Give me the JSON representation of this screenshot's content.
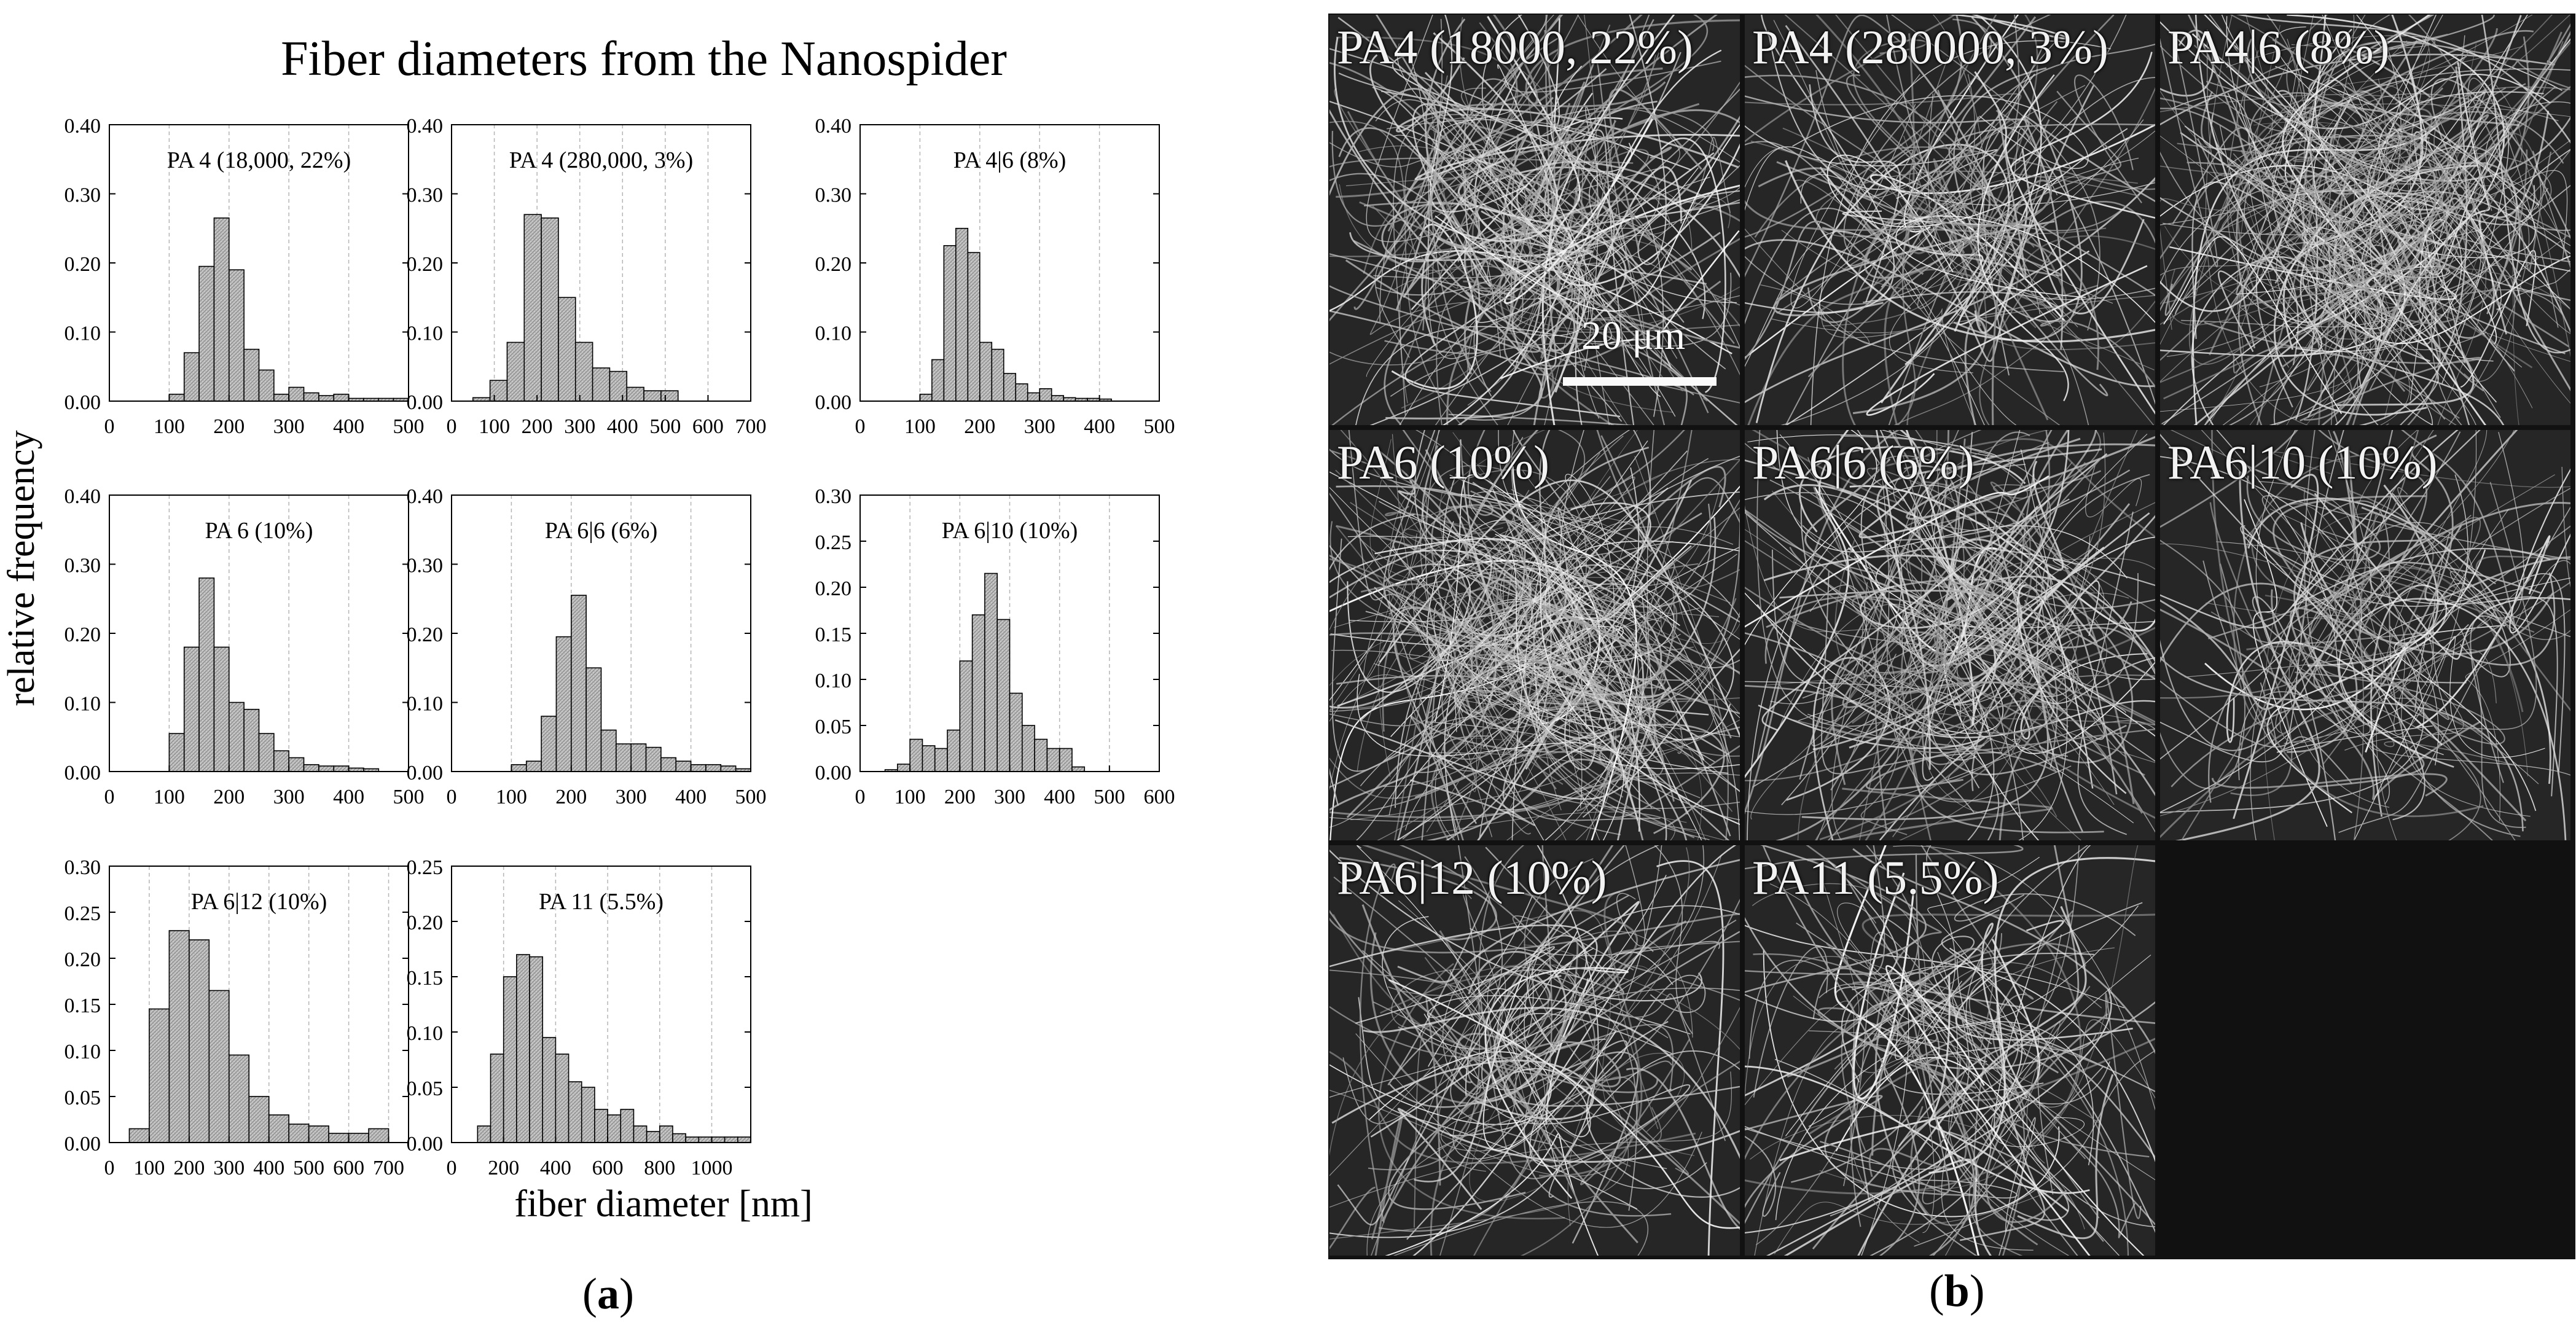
{
  "figure": {
    "left_title": "Fiber diameters from the Nanospider",
    "ylabel": "relative frequency",
    "xlabel": "fiber diameter [nm]",
    "caption_a": [
      "(",
      "a",
      ")"
    ],
    "caption_b": [
      "(",
      "b",
      ")"
    ]
  },
  "chart_data": [
    {
      "type": "bar",
      "title": "PA 4 (18,000, 22%)",
      "xlim": [
        0,
        500
      ],
      "ylim": [
        0,
        0.4
      ],
      "xticks": [
        "0",
        "100",
        "200",
        "300",
        "400",
        "500"
      ],
      "yticks": [
        "0.00",
        "0.10",
        "0.20",
        "0.30",
        "0.40"
      ],
      "bin_width": 25,
      "bin_start": 100,
      "values": [
        0.01,
        0.07,
        0.195,
        0.265,
        0.19,
        0.075,
        0.045,
        0.01,
        0.02,
        0.012,
        0.008,
        0.01,
        0.004,
        0.004,
        0.004,
        0.004
      ]
    },
    {
      "type": "bar",
      "title": "PA 4 (280,000, 3%)",
      "xlim": [
        0,
        700
      ],
      "ylim": [
        0,
        0.4
      ],
      "xticks": [
        "0",
        "100",
        "200",
        "300",
        "400",
        "500",
        "600",
        "700"
      ],
      "yticks": [
        "0.00",
        "0.10",
        "0.20",
        "0.30",
        "0.40"
      ],
      "bin_width": 40,
      "bin_start": 50,
      "values": [
        0.005,
        0.03,
        0.085,
        0.27,
        0.265,
        0.15,
        0.085,
        0.048,
        0.043,
        0.02,
        0.015,
        0.015
      ]
    },
    {
      "type": "bar",
      "title": "PA 4|6 (8%)",
      "xlim": [
        0,
        500
      ],
      "ylim": [
        0,
        0.4
      ],
      "xticks": [
        "0",
        "100",
        "200",
        "300",
        "400",
        "500"
      ],
      "yticks": [
        "0.00",
        "0.10",
        "0.20",
        "0.30",
        "0.40"
      ],
      "bin_width": 20,
      "bin_start": 100,
      "values": [
        0.01,
        0.06,
        0.225,
        0.25,
        0.215,
        0.085,
        0.075,
        0.04,
        0.025,
        0.012,
        0.018,
        0.008,
        0.005,
        0.004,
        0.004,
        0.003
      ]
    },
    {
      "type": "bar",
      "title": "PA 6 (10%)",
      "xlim": [
        0,
        500
      ],
      "ylim": [
        0,
        0.4
      ],
      "xticks": [
        "0",
        "100",
        "200",
        "300",
        "400",
        "500"
      ],
      "yticks": [
        "0.00",
        "0.10",
        "0.20",
        "0.30",
        "0.40"
      ],
      "bin_width": 25,
      "bin_start": 100,
      "values": [
        0.055,
        0.18,
        0.28,
        0.18,
        0.1,
        0.09,
        0.055,
        0.03,
        0.02,
        0.01,
        0.008,
        0.008,
        0.005,
        0.004
      ]
    },
    {
      "type": "bar",
      "title": "PA 6|6 (6%)",
      "xlim": [
        0,
        500
      ],
      "ylim": [
        0,
        0.4
      ],
      "xticks": [
        "0",
        "100",
        "200",
        "300",
        "400",
        "500"
      ],
      "yticks": [
        "0.00",
        "0.10",
        "0.20",
        "0.30",
        "0.40"
      ],
      "bin_width": 25,
      "bin_start": 100,
      "values": [
        0.01,
        0.015,
        0.08,
        0.195,
        0.255,
        0.15,
        0.06,
        0.04,
        0.04,
        0.035,
        0.02,
        0.015,
        0.01,
        0.01,
        0.008,
        0.004
      ]
    },
    {
      "type": "bar",
      "title": "PA 6|10 (10%)",
      "xlim": [
        0,
        600
      ],
      "ylim": [
        0,
        0.3
      ],
      "xticks": [
        "0",
        "100",
        "200",
        "300",
        "400",
        "500",
        "600"
      ],
      "yticks": [
        "0.00",
        "0.05",
        "0.10",
        "0.15",
        "0.20",
        "0.25",
        "0.30"
      ],
      "bin_width": 25,
      "bin_start": 50,
      "values": [
        0.002,
        0.008,
        0.035,
        0.028,
        0.025,
        0.045,
        0.12,
        0.17,
        0.215,
        0.165,
        0.085,
        0.05,
        0.035,
        0.025,
        0.025,
        0.005
      ]
    },
    {
      "type": "bar",
      "title": "PA 6|12 (10%)",
      "xlim": [
        0,
        750
      ],
      "ylim": [
        0,
        0.3
      ],
      "xticks": [
        "0",
        "100",
        "200",
        "300",
        "400",
        "500",
        "600",
        "700"
      ],
      "yticks": [
        "0.00",
        "0.05",
        "0.10",
        "0.15",
        "0.20",
        "0.25",
        "0.30"
      ],
      "bin_width": 50,
      "bin_start": 50,
      "values": [
        0.015,
        0.145,
        0.23,
        0.22,
        0.165,
        0.095,
        0.05,
        0.03,
        0.02,
        0.018,
        0.01,
        0.01,
        0.015
      ]
    },
    {
      "type": "bar",
      "title": "PA 11 (5.5%)",
      "xlim": [
        0,
        1150
      ],
      "ylim": [
        0,
        0.25
      ],
      "xticks": [
        "0",
        "200",
        "400",
        "600",
        "800",
        "1000"
      ],
      "yticks": [
        "0.00",
        "0.05",
        "0.10",
        "0.15",
        "0.20",
        "0.25"
      ],
      "bin_width": 50,
      "bin_start": 100,
      "values": [
        0.015,
        0.08,
        0.15,
        0.17,
        0.168,
        0.095,
        0.08,
        0.055,
        0.05,
        0.03,
        0.025,
        0.03,
        0.015,
        0.01,
        0.015,
        0.008,
        0.005,
        0.005,
        0.005,
        0.005,
        0.005
      ]
    }
  ],
  "sem_images": [
    {
      "label": "PA4 (18000, 22%)",
      "density": "high",
      "scalebar": "20 μm"
    },
    {
      "label": "PA4 (280000, 3%)",
      "density": "medium"
    },
    {
      "label": "PA4|6 (8%)",
      "density": "very-high"
    },
    {
      "label": "PA6 (10%)",
      "density": "very-high"
    },
    {
      "label": "PA6|6 (6%)",
      "density": "high"
    },
    {
      "label": "PA6|10 (10%)",
      "density": "medium"
    },
    {
      "label": "PA6|12 (10%)",
      "density": "medium"
    },
    {
      "label": "PA11 (5.5%)",
      "density": "medium"
    }
  ]
}
